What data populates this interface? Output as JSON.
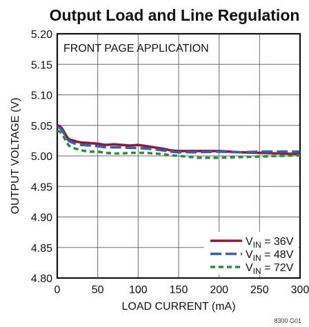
{
  "chart_data": {
    "type": "line",
    "title": "Output Load and Line Regulation",
    "xlabel": "LOAD CURRENT (mA)",
    "ylabel": "OUTPUT VOLTAGE (V)",
    "annotation": "FRONT PAGE APPLICATION",
    "figure_number": "8300 G01",
    "xlim": [
      0,
      300
    ],
    "ylim": [
      4.8,
      5.2
    ],
    "xticks": [
      0,
      50,
      100,
      150,
      200,
      250,
      300
    ],
    "xtick_labels": [
      "0",
      "50",
      "100",
      "150",
      "200",
      "250",
      "300"
    ],
    "yticks": [
      4.8,
      4.85,
      4.9,
      4.95,
      5.0,
      5.05,
      5.1,
      5.15,
      5.2
    ],
    "ytick_labels": [
      "4.80",
      "4.85",
      "4.90",
      "4.95",
      "5.00",
      "5.05",
      "5.10",
      "5.15",
      "5.20"
    ],
    "grid": true,
    "legend_position": "bottom-right",
    "series": [
      {
        "name": "VIN = 36V",
        "legend_sub": "IN",
        "legend_value": " = 36V",
        "color": "#8b1a3b",
        "dash": "solid",
        "x": [
          0,
          3,
          6,
          9,
          12,
          15,
          20,
          25,
          30,
          40,
          50,
          60,
          70,
          80,
          90,
          100,
          110,
          120,
          130,
          140,
          150,
          175,
          200,
          225,
          250,
          275,
          300
        ],
        "y": [
          5.05,
          5.049,
          5.045,
          5.038,
          5.031,
          5.027,
          5.025,
          5.023,
          5.022,
          5.021,
          5.02,
          5.018,
          5.019,
          5.018,
          5.017,
          5.018,
          5.016,
          5.014,
          5.012,
          5.009,
          5.008,
          5.008,
          5.008,
          5.006,
          5.005,
          5.004,
          5.003
        ]
      },
      {
        "name": "VIN = 48V",
        "legend_sub": "IN",
        "legend_value": " = 48V",
        "color": "#3d5da8",
        "dash": "long",
        "x": [
          0,
          3,
          6,
          9,
          12,
          15,
          20,
          25,
          30,
          40,
          50,
          60,
          70,
          80,
          90,
          100,
          110,
          120,
          130,
          140,
          150,
          175,
          200,
          225,
          250,
          275,
          300
        ],
        "y": [
          5.047,
          5.046,
          5.042,
          5.035,
          5.028,
          5.024,
          5.021,
          5.019,
          5.018,
          5.017,
          5.016,
          5.014,
          5.014,
          5.014,
          5.013,
          5.013,
          5.012,
          5.011,
          5.009,
          5.007,
          5.006,
          5.006,
          5.007,
          5.006,
          5.007,
          5.007,
          5.007
        ]
      },
      {
        "name": "VIN = 72V",
        "legend_sub": "IN",
        "legend_value": " = 72V",
        "color": "#2e8b3e",
        "dash": "short",
        "x": [
          0,
          3,
          6,
          9,
          12,
          15,
          20,
          25,
          30,
          40,
          50,
          60,
          70,
          80,
          90,
          100,
          110,
          120,
          130,
          140,
          150,
          175,
          200,
          225,
          250,
          275,
          300
        ],
        "y": [
          5.041,
          5.04,
          5.036,
          5.029,
          5.021,
          5.016,
          5.013,
          5.011,
          5.009,
          5.007,
          5.007,
          5.005,
          5.004,
          5.004,
          5.005,
          5.005,
          5.005,
          5.004,
          5.003,
          5.001,
          5.0,
          4.997,
          4.997,
          4.998,
          4.999,
          5.0,
          5.001
        ]
      }
    ]
  }
}
